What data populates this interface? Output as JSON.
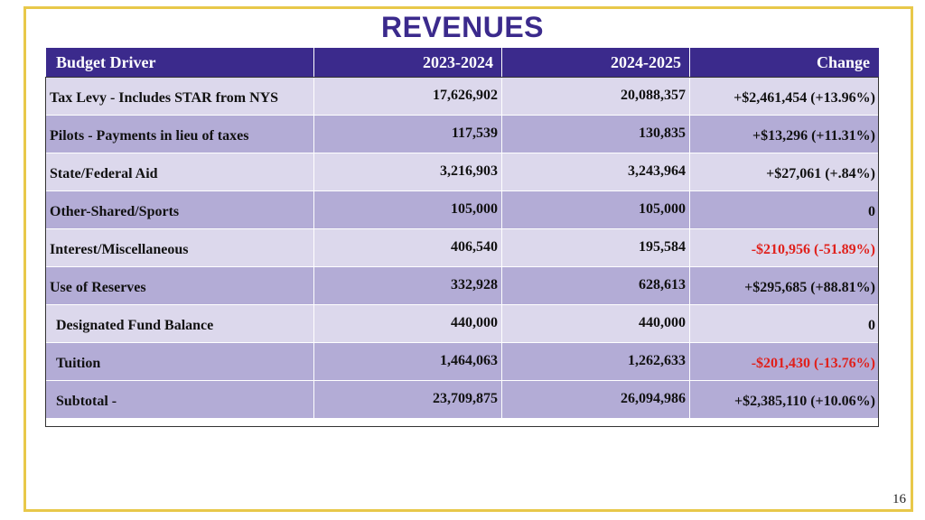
{
  "title": "REVENUES",
  "table": {
    "headers": [
      "Budget Driver",
      "2023-2024",
      "2024-2025",
      "Change"
    ],
    "rows": [
      {
        "label": "Tax Levy - Includes STAR from NYS",
        "y1": "17,626,902",
        "y2": "20,088,357",
        "change": "+$2,461,454 (+13.96%)"
      },
      {
        "label": "Pilots - Payments in lieu of taxes",
        "y1": "117,539",
        "y2": "130,835",
        "change": "+$13,296 (+11.31%)"
      },
      {
        "label": "State/Federal Aid",
        "y1": "3,216,903",
        "y2": "3,243,964",
        "change": "+$27,061 (+.84%)"
      },
      {
        "label": "Other-Shared/Sports",
        "y1": "105,000",
        "y2": "105,000",
        "change": "0"
      },
      {
        "label": "Interest/Miscellaneous",
        "y1": "406,540",
        "y2": "195,584",
        "change": "-$210,956 (-51.89%)"
      },
      {
        "label": "Use of Reserves",
        "y1": "332,928",
        "y2": "628,613",
        "change": "+$295,685 (+88.81%)"
      },
      {
        "label": "Designated Fund Balance",
        "y1": "440,000",
        "y2": "440,000",
        "change": "0"
      },
      {
        "label": "Tuition",
        "y1": "1,464,063",
        "y2": "1,262,633",
        "change": "-$201,430 (-13.76%)"
      },
      {
        "label": "Subtotal -",
        "y1": "23,709,875",
        "y2": "26,094,986",
        "change": "+$2,385,110 (+10.06%)"
      }
    ]
  },
  "colors": {
    "header_bg": "#3b2a8c",
    "row_light": "#dcd8ec",
    "row_dark": "#b3acd6",
    "negative": "#e0201b",
    "frame": "#e8c84a"
  },
  "page_number": "16"
}
